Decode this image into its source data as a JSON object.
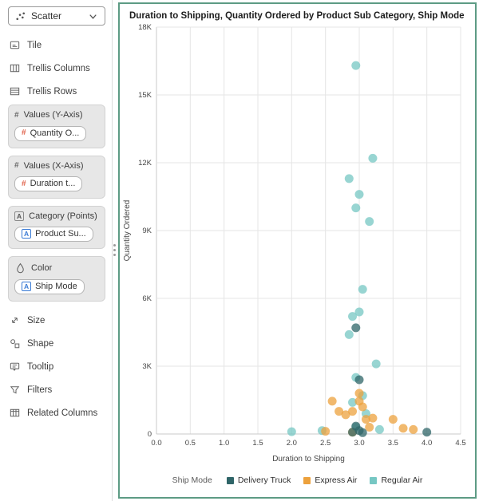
{
  "colors": {
    "panel_border": "#5d9b84",
    "measure_icon": "#e0614a",
    "attribute_icon": "#3a7bd5",
    "grid_line": "#e5e5e5",
    "axis_line": "#c9c9c9"
  },
  "sidebar": {
    "chart_type": {
      "label": "Scatter"
    },
    "items": [
      {
        "label": "Tile"
      },
      {
        "label": "Trellis Columns"
      },
      {
        "label": "Trellis Rows"
      }
    ],
    "sections": [
      {
        "label": "Values (Y-Axis)",
        "chips": [
          {
            "label": "Quantity O..."
          }
        ]
      },
      {
        "label": "Values (X-Axis)",
        "chips": [
          {
            "label": "Duration t..."
          }
        ]
      },
      {
        "label": "Category (Points)",
        "chips": [
          {
            "label": "Product Su..."
          }
        ]
      },
      {
        "label": "Color",
        "chips": [
          {
            "label": "Ship Mode"
          }
        ]
      }
    ],
    "tools": [
      {
        "label": "Size"
      },
      {
        "label": "Shape"
      },
      {
        "label": "Tooltip"
      },
      {
        "label": "Filters"
      },
      {
        "label": "Related Columns"
      }
    ]
  },
  "chart_data": {
    "type": "scatter",
    "title": "Duration to Shipping, Quantity Ordered by Product Sub Category, Ship Mode",
    "xlabel": "Duration to Shipping",
    "ylabel": "Quantity Ordered",
    "xlim": [
      0,
      4.5
    ],
    "ylim": [
      0,
      18000
    ],
    "x_ticks": [
      0,
      0.5,
      1,
      1.5,
      2,
      2.5,
      3,
      3.5,
      4,
      4.5
    ],
    "x_tick_labels": [
      "0.0",
      "0.5",
      "1.0",
      "1.5",
      "2.0",
      "2.5",
      "3.0",
      "3.5",
      "4.0",
      "4.5"
    ],
    "y_ticks": [
      0,
      3000,
      6000,
      9000,
      12000,
      15000,
      18000
    ],
    "y_tick_labels": [
      "0",
      "3K",
      "6K",
      "9K",
      "12K",
      "15K",
      "18K"
    ],
    "grid": true,
    "legend_position": "bottom",
    "legend_title": "Ship Mode",
    "series": [
      {
        "name": "Delivery Truck",
        "color": "#2F6568",
        "points": [
          [
            2.95,
            4700
          ],
          [
            3.0,
            2400
          ],
          [
            2.95,
            350
          ],
          [
            3.0,
            150
          ],
          [
            2.9,
            80
          ],
          [
            3.05,
            60
          ],
          [
            4.0,
            80
          ]
        ]
      },
      {
        "name": "Express Air",
        "color": "#ECA13D",
        "points": [
          [
            2.5,
            120
          ],
          [
            2.6,
            1450
          ],
          [
            2.7,
            1000
          ],
          [
            2.8,
            850
          ],
          [
            2.9,
            1000
          ],
          [
            2.9,
            80
          ],
          [
            3.0,
            1800
          ],
          [
            3.0,
            1450
          ],
          [
            3.05,
            1200
          ],
          [
            3.1,
            650
          ],
          [
            3.15,
            300
          ],
          [
            3.2,
            700
          ],
          [
            3.5,
            650
          ],
          [
            3.65,
            250
          ],
          [
            3.8,
            200
          ]
        ]
      },
      {
        "name": "Regular Air",
        "color": "#76C7C3",
        "points": [
          [
            2.95,
            16300
          ],
          [
            3.2,
            12200
          ],
          [
            2.85,
            11300
          ],
          [
            3.0,
            10600
          ],
          [
            2.95,
            10000
          ],
          [
            3.15,
            9400
          ],
          [
            3.05,
            6400
          ],
          [
            3.0,
            5400
          ],
          [
            2.9,
            5200
          ],
          [
            2.85,
            4400
          ],
          [
            3.25,
            3100
          ],
          [
            2.95,
            2500
          ],
          [
            3.05,
            1700
          ],
          [
            2.9,
            1400
          ],
          [
            3.1,
            900
          ],
          [
            2.0,
            100
          ],
          [
            2.45,
            150
          ],
          [
            2.95,
            300
          ],
          [
            3.3,
            200
          ]
        ]
      }
    ]
  }
}
